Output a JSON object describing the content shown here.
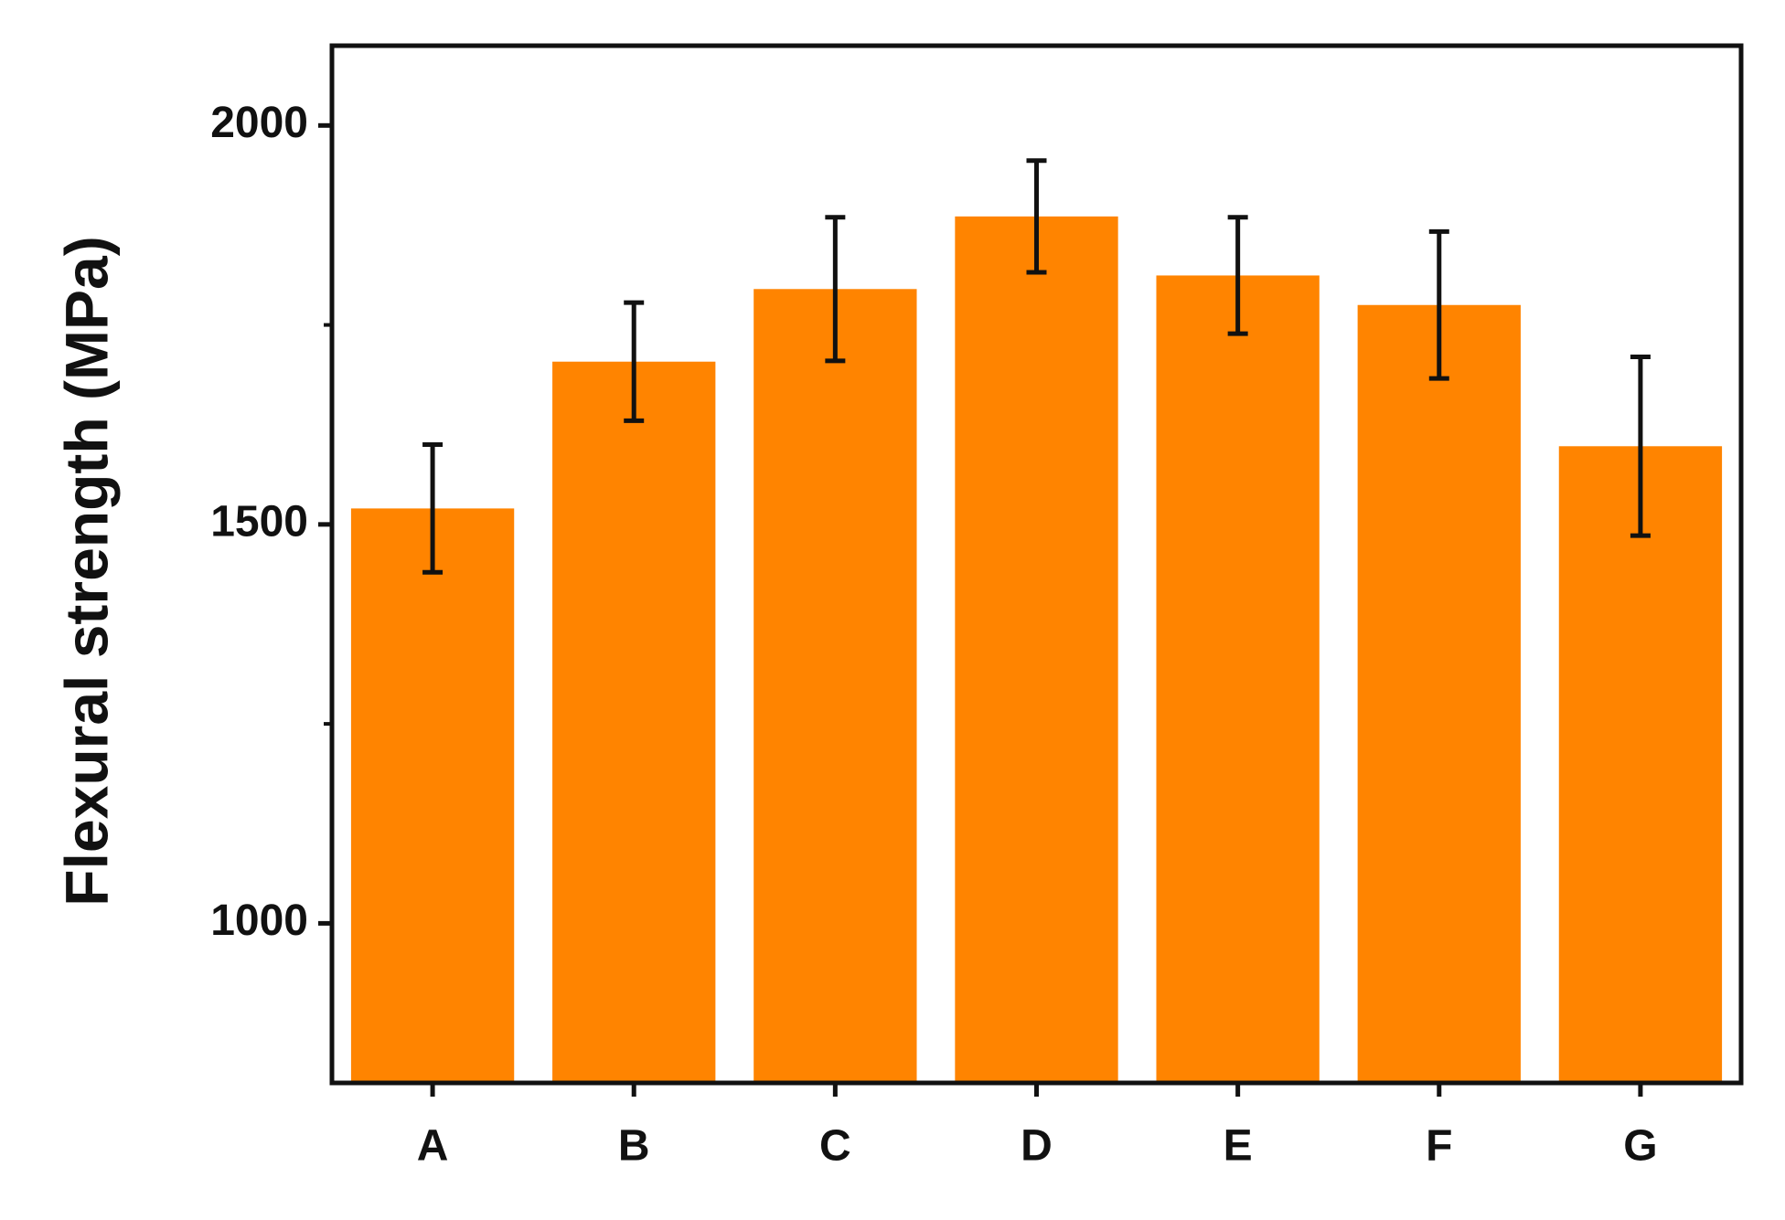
{
  "chart_data": {
    "type": "bar",
    "y_label": "Flexural strength (MPa)",
    "categories": [
      "A",
      "B",
      "C",
      "D",
      "E",
      "F",
      "G"
    ],
    "values": [
      1520,
      1704,
      1795,
      1886,
      1812,
      1775,
      1598
    ],
    "errors": [
      80,
      74,
      90,
      70,
      73,
      92,
      112
    ],
    "color": "#ff8400",
    "ylim": [
      800,
      2100
    ],
    "yticks": [
      1000,
      1500,
      2000
    ],
    "y_minor_ticks": [
      1250,
      1750
    ]
  }
}
